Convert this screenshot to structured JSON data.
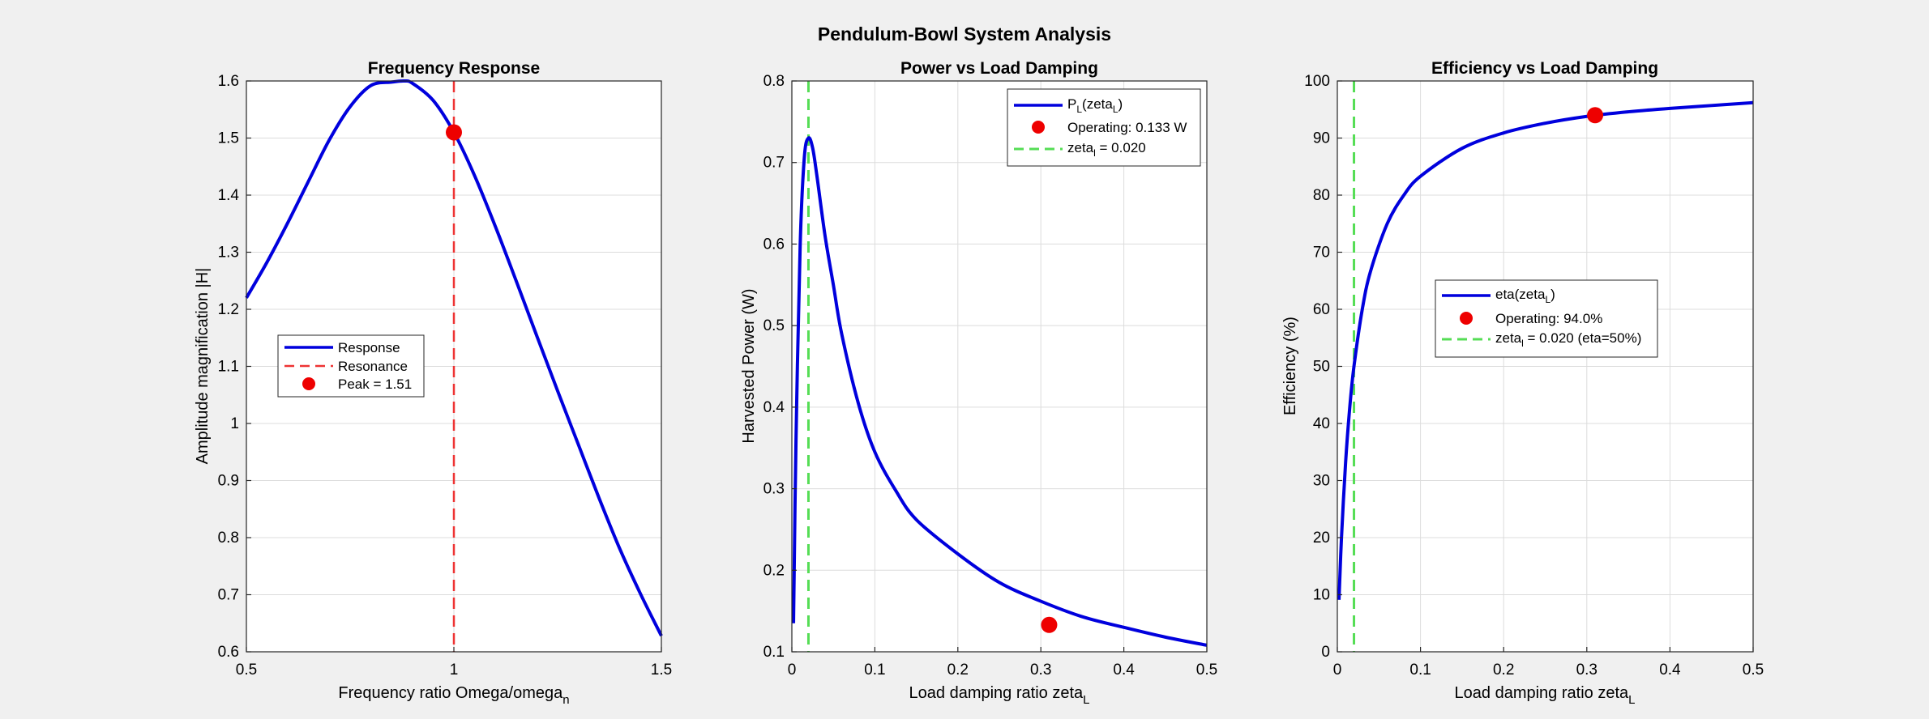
{
  "figure": {
    "title": "Pendulum-Bowl System Analysis"
  },
  "colors": {
    "response": "#0000dd",
    "resonance": "#ee3333",
    "peak": "#ee0000",
    "threshold": "#55dd55",
    "grid": "#dcdcdc"
  },
  "chart_data": [
    {
      "type": "line",
      "title": "Frequency Response",
      "xlabel": "Frequency ratio Omega/omega",
      "xlabel_sub": "n",
      "ylabel": "Amplitude magnification |H|",
      "xlim": [
        0.5,
        1.5
      ],
      "ylim": [
        0.6,
        1.6
      ],
      "xticks": [
        "0.5",
        "1",
        "1.5"
      ],
      "yticks": [
        "0.6",
        "0.7",
        "0.8",
        "0.9",
        "1",
        "1.1",
        "1.2",
        "1.3",
        "1.4",
        "1.5",
        "1.6"
      ],
      "grid": true,
      "legend_position": "center-left",
      "series": [
        {
          "name": "Response",
          "x": [
            0.5,
            0.55,
            0.6,
            0.65,
            0.7,
            0.75,
            0.8,
            0.85,
            0.88,
            0.9,
            0.95,
            1.0,
            1.05,
            1.1,
            1.15,
            1.2,
            1.25,
            1.3,
            1.35,
            1.4,
            1.45,
            1.5
          ],
          "y": [
            1.22,
            1.283,
            1.352,
            1.425,
            1.497,
            1.555,
            1.592,
            1.598,
            1.6,
            1.596,
            1.566,
            1.51,
            1.434,
            1.345,
            1.25,
            1.153,
            1.057,
            0.963,
            0.869,
            0.78,
            0.701,
            0.628
          ]
        }
      ],
      "vline": {
        "name": "Resonance",
        "x": 1.0
      },
      "marker": {
        "name": "Peak = 1.51",
        "x": 1.0,
        "y": 1.51
      }
    },
    {
      "type": "line",
      "title": "Power vs Load Damping",
      "xlabel": "Load damping ratio zeta",
      "xlabel_sub": "L",
      "ylabel": "Harvested Power (W)",
      "xlim": [
        0,
        0.5
      ],
      "ylim": [
        0.1,
        0.8
      ],
      "xticks": [
        "0",
        "0.1",
        "0.2",
        "0.3",
        "0.4",
        "0.5"
      ],
      "yticks": [
        "0.1",
        "0.2",
        "0.3",
        "0.4",
        "0.5",
        "0.6",
        "0.7",
        "0.8"
      ],
      "grid": true,
      "legend_position": "top-right",
      "series": [
        {
          "name": "P(zeta)",
          "x": [
            0.002,
            0.005,
            0.01,
            0.015,
            0.02,
            0.025,
            0.03,
            0.04,
            0.05,
            0.06,
            0.08,
            0.1,
            0.125,
            0.15,
            0.2,
            0.25,
            0.3,
            0.35,
            0.4,
            0.45,
            0.5
          ],
          "y": [
            0.135,
            0.36,
            0.598,
            0.706,
            0.73,
            0.718,
            0.685,
            0.61,
            0.55,
            0.49,
            0.405,
            0.345,
            0.298,
            0.262,
            0.22,
            0.185,
            0.162,
            0.143,
            0.13,
            0.118,
            0.108
          ]
        }
      ],
      "vline": {
        "name": "zeta = 0.020",
        "x": 0.02
      },
      "marker": {
        "name": "Operating: 0.133 W",
        "x": 0.31,
        "y": 0.133
      }
    },
    {
      "type": "line",
      "title": "Efficiency vs Load Damping",
      "xlabel": "Load damping ratio zeta",
      "xlabel_sub": "L",
      "ylabel": "Efficiency (%)",
      "xlim": [
        0,
        0.5
      ],
      "ylim": [
        0,
        100
      ],
      "xticks": [
        "0",
        "0.1",
        "0.2",
        "0.3",
        "0.4",
        "0.5"
      ],
      "yticks": [
        "0",
        "10",
        "20",
        "30",
        "40",
        "50",
        "60",
        "70",
        "80",
        "90",
        "100"
      ],
      "grid": true,
      "legend_position": "center",
      "series": [
        {
          "name": "eta(zeta)",
          "x": [
            0.002,
            0.005,
            0.01,
            0.015,
            0.02,
            0.03,
            0.04,
            0.06,
            0.08,
            0.1,
            0.15,
            0.2,
            0.25,
            0.3,
            0.35,
            0.4,
            0.45,
            0.5
          ],
          "y": [
            9.1,
            20.0,
            33.3,
            42.9,
            50.0,
            60.0,
            66.7,
            75.0,
            80.0,
            83.3,
            88.2,
            90.9,
            92.6,
            93.8,
            94.6,
            95.2,
            95.7,
            96.2
          ]
        }
      ],
      "vline": {
        "name": "zeta = 0.020 (eta=50%)",
        "x": 0.02
      },
      "marker": {
        "name": "Operating: 94.0%",
        "x": 0.31,
        "y": 94.0
      }
    }
  ],
  "legends": [
    {
      "items": [
        {
          "label": "Response"
        },
        {
          "label": "Resonance"
        },
        {
          "label": "Peak = 1.51"
        }
      ]
    },
    {
      "items": [
        {
          "label": "P",
          "sub": "L",
          "rest": "(zeta",
          "sub2": "L",
          "end": ")"
        },
        {
          "label": "Operating: 0.133 W"
        },
        {
          "label": "zeta",
          "sub": "l",
          "rest": " = 0.020"
        }
      ]
    },
    {
      "items": [
        {
          "label": "eta(zeta",
          "sub": "L",
          "rest": ")"
        },
        {
          "label": "Operating: 94.0%"
        },
        {
          "label": "zeta",
          "sub": "l",
          "rest": " = 0.020 (eta=50%)"
        }
      ]
    }
  ]
}
